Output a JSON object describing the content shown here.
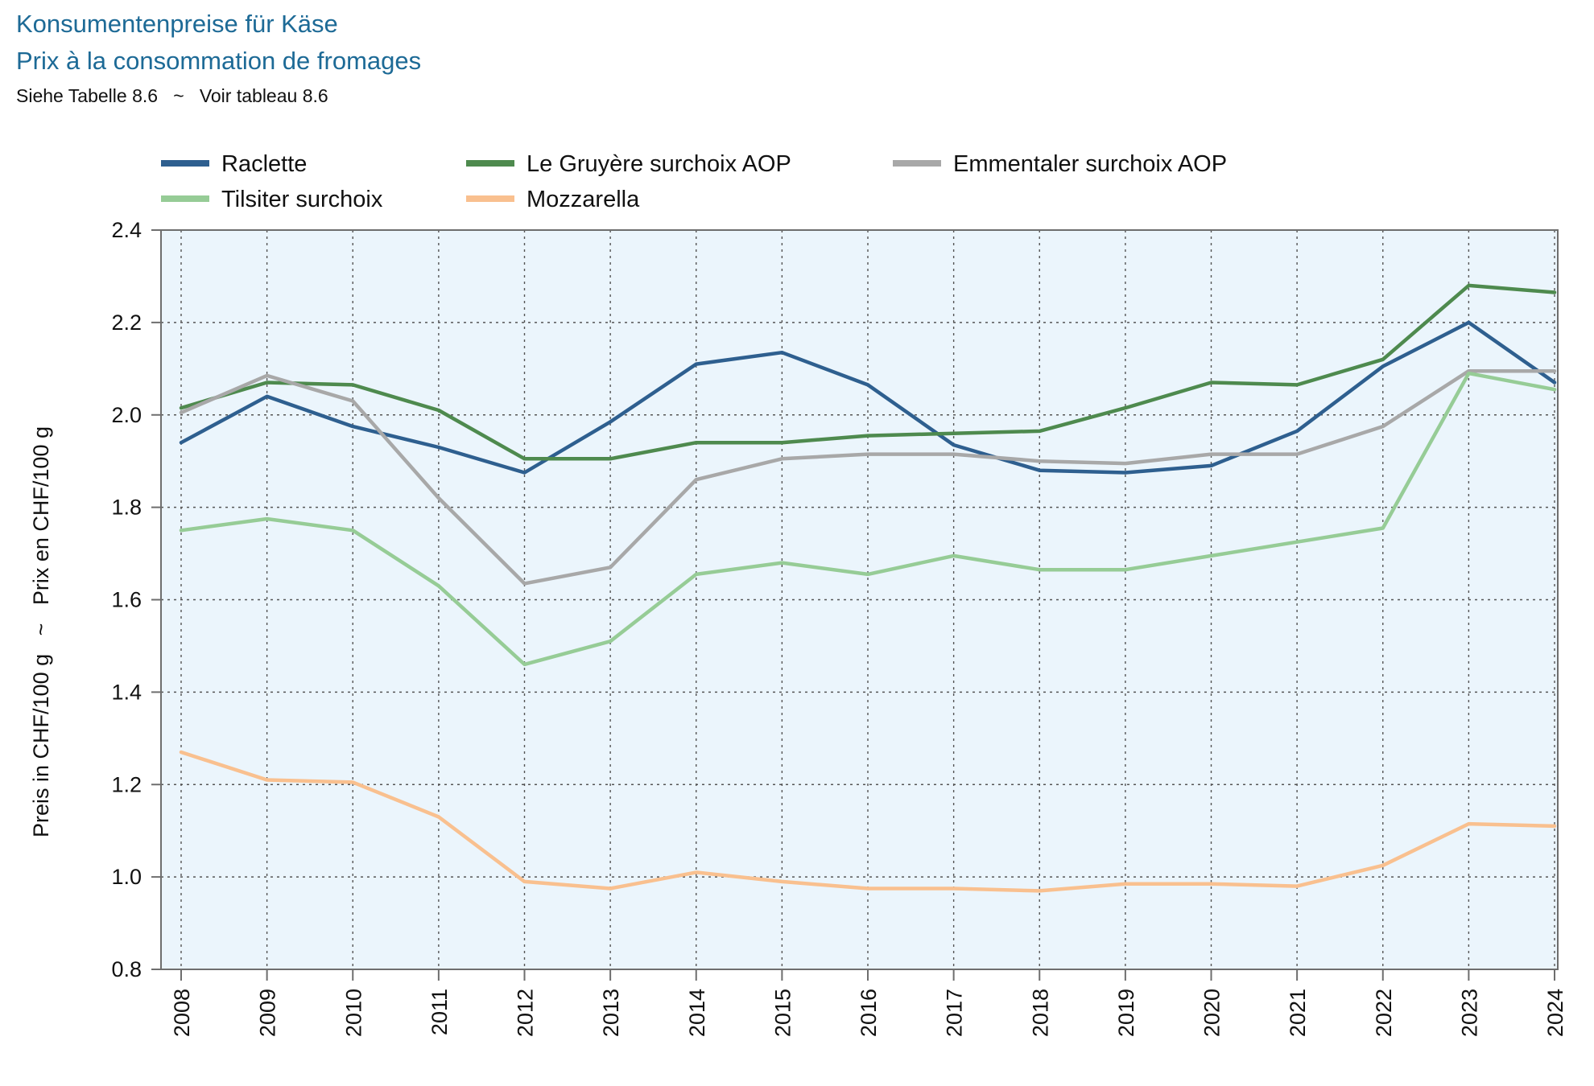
{
  "title_de": "Konsumentenpreise für Käse",
  "title_fr": "Prix à la consommation de fromages",
  "subtitle": "Siehe Tabelle 8.6   ~   Voir tableau 8.6",
  "chart_data": {
    "type": "line",
    "ylabel": "Preis in CHF/100 g   ~   Prix en CHF/100 g",
    "xlabel": "",
    "ylim": [
      0.8,
      2.4
    ],
    "yticks": [
      "0.8",
      "1.0",
      "1.2",
      "1.4",
      "1.6",
      "1.8",
      "2.0",
      "2.2",
      "2.4"
    ],
    "grid": true,
    "legend_position": "top",
    "plot_background": "#ebf5fc",
    "x": [
      "2008",
      "2009",
      "2010",
      "2011",
      "2012",
      "2013",
      "2014",
      "2015",
      "2016",
      "2017",
      "2018",
      "2019",
      "2020",
      "2021",
      "2022",
      "2023",
      "2024"
    ],
    "series": [
      {
        "name": "Raclette",
        "color": "#2e5f8f",
        "values": [
          1.94,
          2.04,
          1.975,
          1.93,
          1.875,
          1.985,
          2.11,
          2.135,
          2.065,
          1.935,
          1.88,
          1.875,
          1.89,
          1.965,
          2.105,
          2.2,
          2.07
        ]
      },
      {
        "name": "Le Gruyère surchoix AOP",
        "color": "#4e8a4e",
        "values": [
          2.015,
          2.07,
          2.065,
          2.01,
          1.905,
          1.905,
          1.94,
          1.94,
          1.955,
          1.96,
          1.965,
          2.015,
          2.07,
          2.065,
          2.12,
          2.28,
          2.265
        ]
      },
      {
        "name": "Emmentaler surchoix AOP",
        "color": "#a8a8a8",
        "values": [
          2.005,
          2.085,
          2.03,
          1.82,
          1.635,
          1.67,
          1.86,
          1.905,
          1.915,
          1.915,
          1.9,
          1.895,
          1.915,
          1.915,
          1.975,
          2.095,
          2.095
        ]
      },
      {
        "name": "Tilsiter surchoix",
        "color": "#96cc96",
        "values": [
          1.75,
          1.775,
          1.75,
          1.63,
          1.46,
          1.51,
          1.655,
          1.68,
          1.655,
          1.695,
          1.665,
          1.665,
          1.695,
          1.725,
          1.755,
          2.09,
          2.055
        ]
      },
      {
        "name": "Mozzarella",
        "color": "#f9c08f",
        "values": [
          1.27,
          1.21,
          1.205,
          1.13,
          0.99,
          0.975,
          1.01,
          0.99,
          0.975,
          0.975,
          0.97,
          0.985,
          0.985,
          0.98,
          1.025,
          1.115,
          1.11
        ]
      }
    ]
  }
}
